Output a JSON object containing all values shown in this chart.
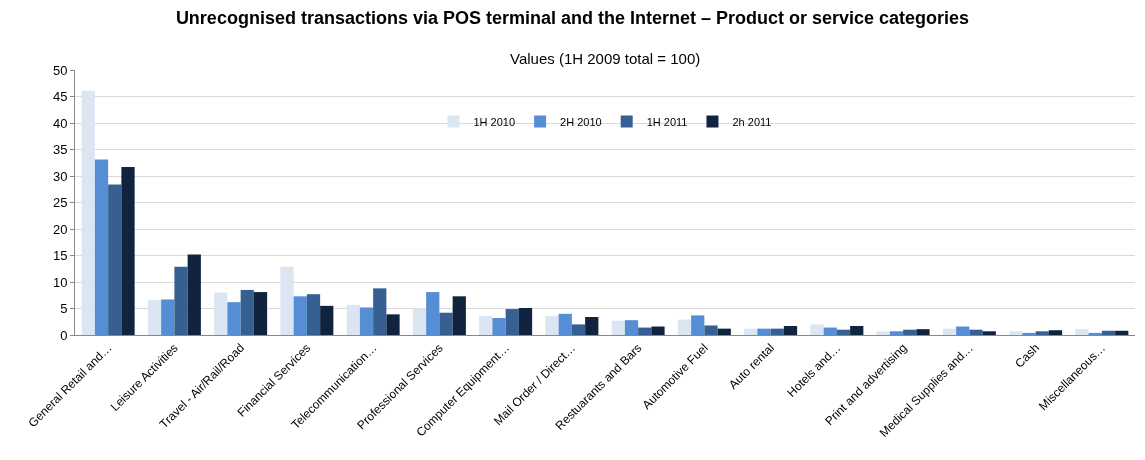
{
  "chart_data": {
    "type": "bar",
    "title": "Unrecognised transactions via POS terminal and the Internet – Product or service categories",
    "subtitle": "Values (1H 2009 total = 100)",
    "categories": [
      "General Retail and…",
      "Leisure Activities",
      "Travel - Air/Rail/Road",
      "Financial Services",
      "Telecommunication…",
      "Professional Services",
      "Computer Equipment…",
      "Mail Order / Direct…",
      "Restuarants and Bars",
      "Automotive Fuel",
      "Auto rental",
      "Hotels and…",
      "Print and advertising",
      "Medical Supplies and…",
      "Cash",
      "Miscellaneous…"
    ],
    "series": [
      {
        "name": "1H 2010",
        "color": "#dce6f2",
        "values": [
          46.1,
          6.6,
          8.0,
          12.9,
          5.7,
          5.0,
          3.6,
          3.6,
          2.7,
          2.9,
          1.2,
          2.0,
          0.7,
          1.2,
          0.7,
          1.1
        ]
      },
      {
        "name": "2H 2010",
        "color": "#558ed5",
        "values": [
          33.1,
          6.7,
          6.2,
          7.3,
          5.2,
          8.1,
          3.2,
          4.0,
          2.8,
          3.7,
          1.2,
          1.4,
          0.7,
          1.6,
          0.4,
          0.4
        ]
      },
      {
        "name": "1H 2011",
        "color": "#376092",
        "values": [
          28.4,
          12.9,
          8.5,
          7.7,
          8.8,
          4.2,
          4.9,
          2.0,
          1.4,
          1.8,
          1.2,
          1.0,
          1.0,
          1.0,
          0.7,
          0.8
        ]
      },
      {
        "name": "2h 2011",
        "color": "#10243f",
        "values": [
          31.7,
          15.2,
          8.1,
          5.5,
          3.9,
          7.3,
          5.1,
          3.4,
          1.6,
          1.2,
          1.7,
          1.7,
          1.1,
          0.7,
          0.9,
          0.8
        ]
      }
    ],
    "ylim": [
      0,
      50
    ],
    "yticks": [
      0,
      5,
      10,
      15,
      20,
      25,
      30,
      35,
      40,
      45,
      50
    ],
    "grid": "y",
    "legend": "top"
  }
}
